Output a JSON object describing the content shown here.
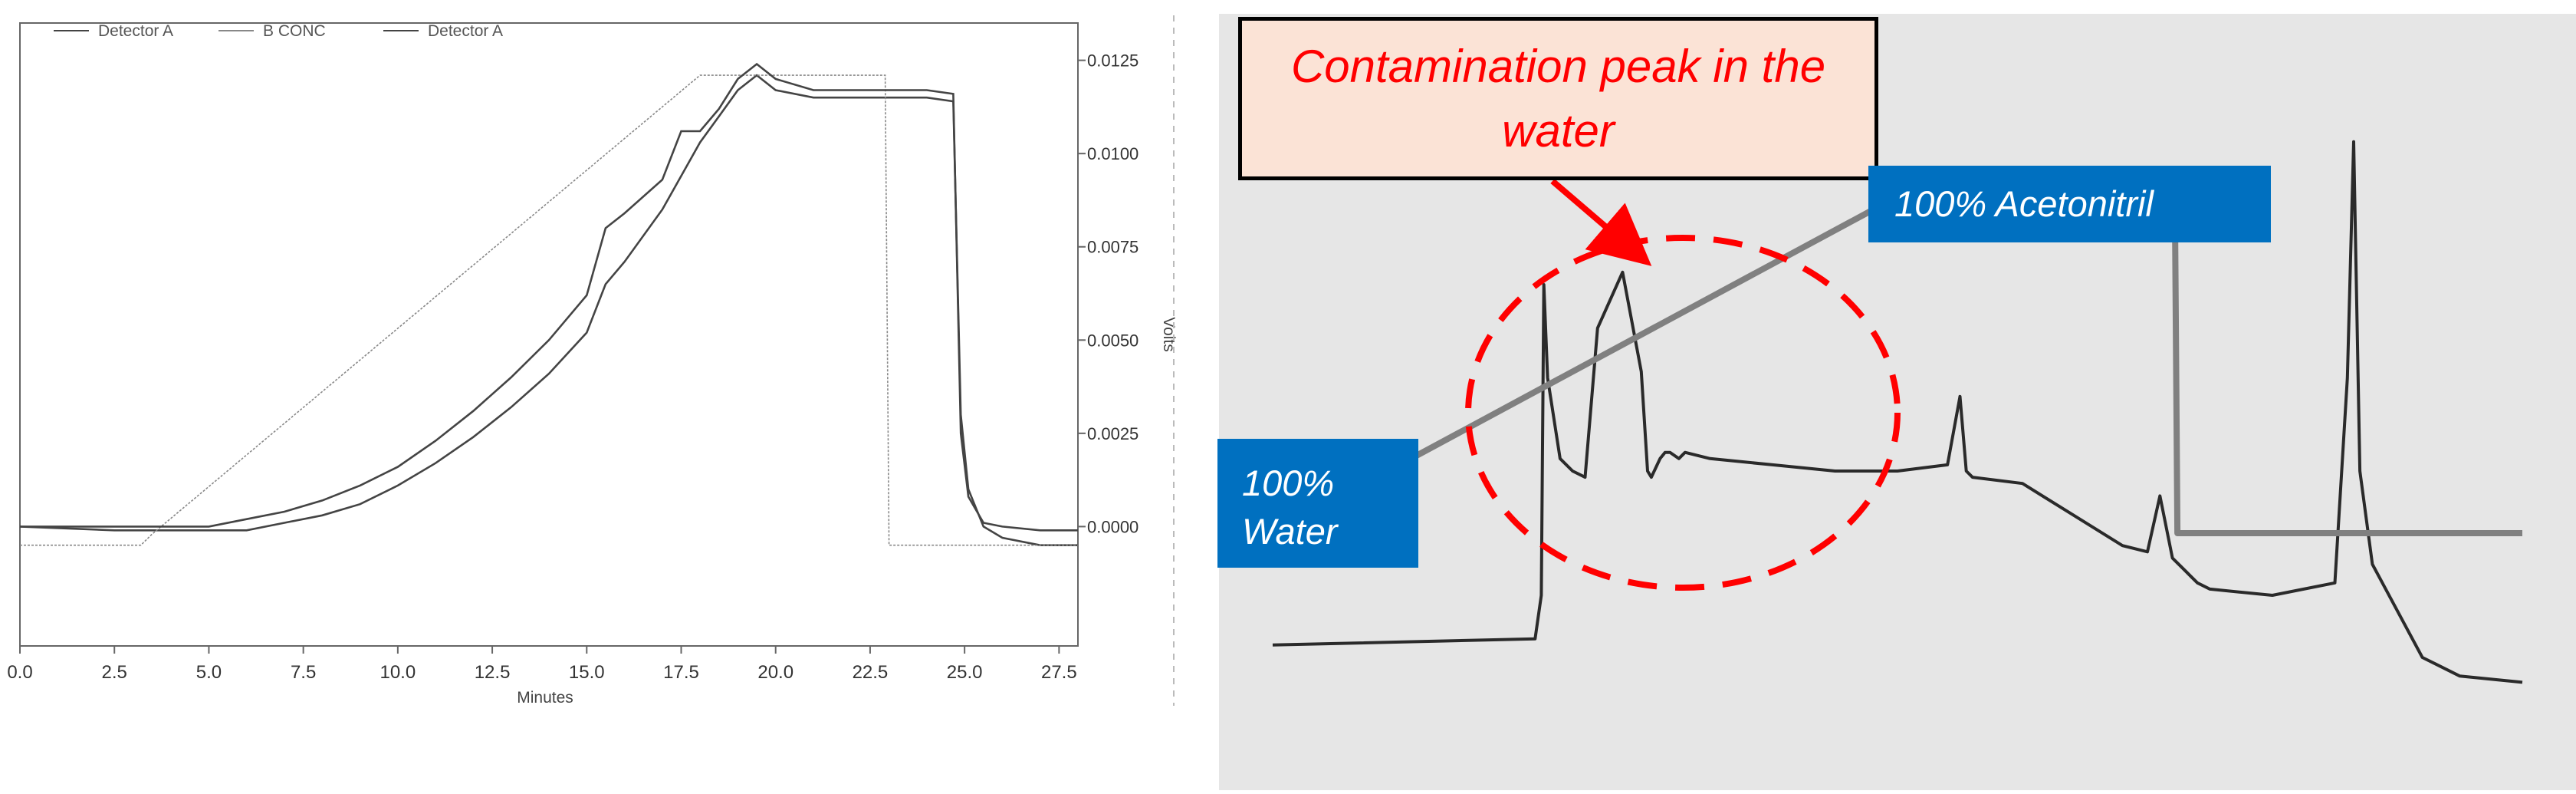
{
  "chart_data": [
    {
      "type": "line",
      "title": "",
      "legend": {
        "placement": "top-left",
        "entries": [
          "Detector A",
          "B CONC",
          "Detector A"
        ]
      },
      "xlabel": "Minutes",
      "ylabel_right": "Volts",
      "xlim": [
        0,
        28
      ],
      "ylim": [
        -0.0032,
        0.0135
      ],
      "x_ticks": [
        "0.0",
        "2.5",
        "5.0",
        "7.5",
        "10.0",
        "12.5",
        "15.0",
        "17.5",
        "20.0",
        "22.5",
        "25.0",
        "27.5"
      ],
      "y_ticks_right": [
        "0.0125",
        "0.0100",
        "0.0075",
        "0.0050",
        "0.0025",
        "0.0000"
      ],
      "grid": false,
      "colors": {
        "trace": "#444444",
        "gradient": "#888888",
        "axis": "#666666"
      },
      "series": [
        {
          "name": "Detector A",
          "x": [
            0,
            2.5,
            5,
            6,
            7,
            8,
            9,
            10,
            11,
            12,
            13,
            14,
            15,
            15.5,
            16,
            17,
            17.5,
            18,
            18.5,
            19,
            19.5,
            20,
            21,
            22,
            23,
            24,
            24.7,
            24.9,
            25.1,
            25.5,
            26,
            27,
            28
          ],
          "y": [
            0.0,
            -0.0001,
            -0.0001,
            -0.0001,
            0.0001,
            0.0003,
            0.0006,
            0.0011,
            0.0017,
            0.0024,
            0.0032,
            0.0041,
            0.0052,
            0.0065,
            0.0071,
            0.0085,
            0.0094,
            0.0103,
            0.011,
            0.0117,
            0.0121,
            0.0117,
            0.0115,
            0.0115,
            0.0115,
            0.0115,
            0.0114,
            0.003,
            0.001,
            0.0,
            -0.0003,
            -0.0005,
            -0.0005
          ]
        },
        {
          "name": "B CONC",
          "x": [
            0,
            3.2,
            3.5,
            18,
            22.9,
            23,
            24,
            28
          ],
          "y": [
            -0.0005,
            -0.0005,
            -0.0002,
            0.0121,
            0.0121,
            -0.0005,
            -0.0005,
            -0.0005
          ]
        },
        {
          "name": "Detector A",
          "x": [
            0,
            2.5,
            5,
            6,
            7,
            8,
            9,
            10,
            11,
            12,
            13,
            14,
            15,
            15.5,
            16,
            17,
            17.5,
            18,
            18.5,
            19,
            19.5,
            20,
            21,
            22,
            23,
            24,
            24.7,
            24.9,
            25.1,
            25.5,
            26,
            27,
            28
          ],
          "y": [
            0.0,
            0.0,
            0.0,
            0.0002,
            0.0004,
            0.0007,
            0.0011,
            0.0016,
            0.0023,
            0.0031,
            0.004,
            0.005,
            0.0062,
            0.008,
            0.0084,
            0.0093,
            0.0106,
            0.0106,
            0.0112,
            0.012,
            0.0124,
            0.012,
            0.0117,
            0.0117,
            0.0117,
            0.0117,
            0.0116,
            0.0025,
            0.0008,
            0.0001,
            0.0,
            -0.0001,
            -0.0001
          ]
        }
      ]
    },
    {
      "type": "line",
      "title": "",
      "xlabel": "",
      "ylabel": "",
      "grid": false,
      "axes_shown": false,
      "xlim": [
        0,
        100
      ],
      "ylim": [
        0,
        100
      ],
      "colors": {
        "trace": "#2a2a2a",
        "gradient": "#808080",
        "callout": "#ff0000",
        "label_box": "#0070c0"
      },
      "series": [
        {
          "role": "chromatogram",
          "x": [
            0,
            21,
            21.5,
            21.7,
            22,
            23,
            24,
            25,
            26,
            28,
            29.5,
            30,
            30.3,
            31,
            31.4,
            31.8,
            32.5,
            33,
            35,
            40,
            45,
            50,
            54,
            55,
            55.5,
            56,
            60,
            64,
            68,
            70,
            71,
            72,
            73,
            73.5,
            74,
            75,
            80,
            85,
            86,
            86.5,
            87,
            88,
            92,
            93,
            94,
            95,
            100
          ],
          "y": [
            12,
            13,
            20,
            70,
            55,
            42,
            40,
            39,
            63,
            72,
            56,
            40,
            39,
            42,
            43,
            43,
            42,
            43,
            42,
            41,
            40,
            40,
            41,
            52,
            40,
            39,
            38,
            33,
            28,
            27,
            36,
            26,
            24,
            23,
            22,
            21,
            20,
            22,
            55,
            93,
            40,
            25,
            10,
            9,
            8,
            7,
            6
          ]
        },
        {
          "role": "gradient",
          "x": [
            0,
            48,
            72.2,
            72.4,
            100
          ],
          "y": [
            30,
            82,
            82,
            30,
            30
          ]
        }
      ],
      "annotations": {
        "callout_text": "Contamination peak in the water",
        "label_top": "100% Acetonitril",
        "label_bottom": "100% Water"
      }
    }
  ]
}
